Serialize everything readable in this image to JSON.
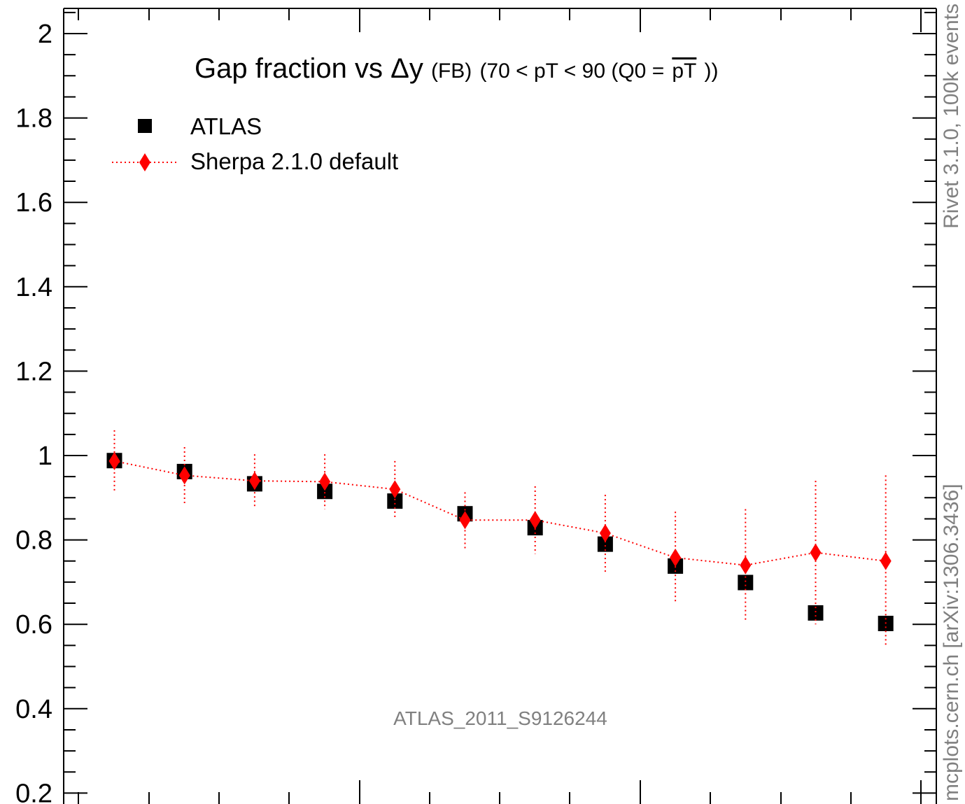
{
  "chart_data": {
    "type": "scatter",
    "title": {
      "prefix": "Gap fraction vs",
      "delta": "Δy",
      "sub": "(FB)",
      "range_open": "(70 < pT <  90 (Q0 =",
      "overline": "pT",
      "range_close": "))"
    },
    "ylim": [
      0.2,
      2.05
    ],
    "y_ticks": [
      0.2,
      0.4,
      0.6,
      0.8,
      1,
      1.2,
      1.4,
      1.6,
      1.8,
      2
    ],
    "y_tick_labels": [
      "0.2",
      "0.4",
      "0.6",
      "0.8",
      "1",
      "1.2",
      "1.4",
      "1.6",
      "1.8",
      "2"
    ],
    "x": [
      1,
      2,
      3,
      4,
      5,
      6,
      7,
      8,
      9,
      10,
      11,
      12
    ],
    "legend_position": "top-left",
    "series": [
      {
        "name": "ATLAS",
        "color": "#000000",
        "marker": "square",
        "values": [
          0.988,
          0.962,
          0.933,
          0.915,
          0.892,
          0.862,
          0.829,
          0.79,
          0.738,
          0.699,
          0.627,
          0.602
        ]
      },
      {
        "name": "Sherpa 2.1.0 default",
        "color": "#ff0000",
        "marker": "diamond",
        "line": "dotted",
        "values": [
          0.987,
          0.953,
          0.94,
          0.938,
          0.92,
          0.847,
          0.847,
          0.816,
          0.758,
          0.74,
          0.77,
          0.75
        ],
        "err_low": [
          0.913,
          0.887,
          0.88,
          0.873,
          0.853,
          0.777,
          0.767,
          0.723,
          0.65,
          0.607,
          0.6,
          0.547
        ],
        "err_high": [
          1.06,
          1.02,
          1.003,
          1.003,
          0.987,
          0.913,
          0.927,
          0.907,
          0.867,
          0.873,
          0.94,
          0.953
        ]
      }
    ]
  },
  "side_label_top": "Rivet 3.1.0,  100k events",
  "side_label_bottom": "mcplots.cern.ch [arXiv:1306.3436]",
  "watermark": "ATLAS_2011_S9126244"
}
